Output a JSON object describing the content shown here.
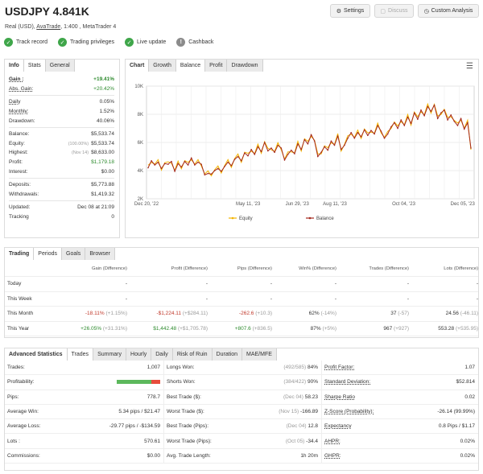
{
  "header": {
    "title": "USDJPY 4.841K",
    "account_type": "Real (USD),",
    "broker": "AvaTrade",
    "leverage_platform": ", 1:400 , MetaTrader 4"
  },
  "top_buttons": {
    "settings": "Settings",
    "discuss": "Discuss",
    "custom_analysis": "Custom Analysis"
  },
  "badges": [
    {
      "label": "Track record",
      "status": "ok"
    },
    {
      "label": "Trading privileges",
      "status": "ok"
    },
    {
      "label": "Live update",
      "status": "ok"
    },
    {
      "label": "Cashback",
      "status": "neutral"
    }
  ],
  "info": {
    "tabs": [
      "Info",
      "Stats",
      "General"
    ],
    "rows": [
      {
        "label": "Gain :",
        "value": "+19.41%"
      },
      {
        "label": "Abs. Gain:",
        "value": "+20.42%"
      },
      {
        "label": "Daily",
        "value": "0.05%"
      },
      {
        "label": "Monthly:",
        "value": "1.52%"
      },
      {
        "label": "Drawdown:",
        "value": "40.06%"
      },
      {
        "label": "Balance:",
        "value": "$5,533.74"
      },
      {
        "label": "Equity:",
        "note": "(100.00%)",
        "value": "$5,533.74"
      },
      {
        "label": "Highest:",
        "note": "(Nov 14)",
        "value": "$8,633.00"
      },
      {
        "label": "Profit:",
        "value": "$1,179.18"
      },
      {
        "label": "Interest:",
        "value": "$0.00"
      },
      {
        "label": "Deposits:",
        "value": "$5,773.88"
      },
      {
        "label": "Withdrawals:",
        "value": "$1,419.32"
      },
      {
        "label": "Updated:",
        "value": "Dec 08 at 21:09"
      },
      {
        "label": "Tracking",
        "value": "0"
      }
    ]
  },
  "chart_panel": {
    "tabs": [
      "Chart",
      "Growth",
      "Balance",
      "Profit",
      "Drawdown"
    ]
  },
  "chart_data": {
    "type": "line",
    "x_ticks": [
      "Dec 20, '22",
      "May 11, '23",
      "Jun 29, '23",
      "Aug 11, '23",
      "Oct 04, '23",
      "Dec 05, '23"
    ],
    "y_ticks": [
      "10K",
      "8K",
      "6K",
      "4K",
      "2K"
    ],
    "ylim": [
      2000,
      10000
    ],
    "legend": [
      "Equity",
      "Balance"
    ],
    "legend_position": "bottom",
    "colors": {
      "equity": "#f3b400",
      "balance": "#a52a1e"
    },
    "series": [
      {
        "name": "Balance",
        "values": [
          4200,
          4700,
          4400,
          4600,
          4150,
          4500,
          4450,
          4650,
          3950,
          4500,
          4250,
          4650,
          4400,
          4900,
          4400,
          4600,
          4450,
          3700,
          3800,
          3750,
          4000,
          4150,
          3950,
          4300,
          4600,
          4350,
          4800,
          5000,
          4700,
          5250,
          5050,
          5500,
          5150,
          5700,
          5350,
          6000,
          5400,
          5600,
          5300,
          5800,
          5600,
          4750,
          5150,
          5450,
          5200,
          5900,
          5500,
          6200,
          5900,
          6550,
          6100,
          5000,
          5300,
          5700,
          5450,
          6100,
          5800,
          6450,
          5500,
          5800,
          6300,
          6700,
          6300,
          6700,
          6400,
          6900,
          6500,
          6850,
          6600,
          7200,
          6800,
          6300,
          6600,
          7100,
          7400,
          7000,
          7600,
          7200,
          7800,
          7350,
          8100,
          7650,
          8300,
          7900,
          8550,
          8200,
          8650,
          7700,
          8100,
          8300,
          7600,
          7950,
          7500,
          7200,
          7700,
          6950,
          7400,
          5600
        ]
      }
    ]
  },
  "trading": {
    "tabs": [
      "Trading",
      "Periods",
      "Goals",
      "Browser"
    ],
    "headers": [
      "Gain (Difference)",
      "Profit (Difference)",
      "Pips (Difference)",
      "Win% (Difference)",
      "Trades (Difference)",
      "Lots (Difference)"
    ],
    "rows": [
      {
        "label": "Today",
        "gain": "-",
        "gain_d": "",
        "profit": "-",
        "profit_d": "",
        "pips": "-",
        "pips_d": "",
        "win": "-",
        "win_d": "",
        "trades": "-",
        "trades_d": "",
        "lots": "-",
        "lots_d": ""
      },
      {
        "label": "This Week",
        "gain": "-",
        "gain_d": "",
        "profit": "-",
        "profit_d": "",
        "pips": "-",
        "pips_d": "",
        "win": "-",
        "win_d": "",
        "trades": "-",
        "trades_d": "",
        "lots": "-",
        "lots_d": ""
      },
      {
        "label": "This Month",
        "gain": "-18.11%",
        "gain_d": "(+1.15%)",
        "profit": "-$1,224.11",
        "profit_d": "(+$284.11)",
        "pips": "-262.6",
        "pips_d": "(+10.3)",
        "win": "62%",
        "win_d": "(-14%)",
        "trades": "37",
        "trades_d": "(-57)",
        "lots": "24.56",
        "lots_d": "(-46.11)"
      },
      {
        "label": "This Year",
        "gain": "+26.05%",
        "gain_d": "(+31.31%)",
        "profit": "$1,442.48",
        "profit_d": "(+$1,705.78)",
        "pips": "+807.6",
        "pips_d": "(+836.5)",
        "win": "87%",
        "win_d": "(+5%)",
        "trades": "967",
        "trades_d": "(+927)",
        "lots": "553.28",
        "lots_d": "(+535.95)"
      }
    ]
  },
  "advanced": {
    "tabs": [
      "Advanced Statistics",
      "Trades",
      "Summary",
      "Hourly",
      "Daily",
      "Risk of Ruin",
      "Duration",
      "MAE/MFE"
    ],
    "profitability_win_ratio": 0.8,
    "rows": [
      {
        "l1": "Trades:",
        "v1": "1,007",
        "l2": "Longs Won:",
        "n2": "(492/585)",
        "v2": "84%",
        "l3": "Profit Factor:",
        "v3": "1.07"
      },
      {
        "l1": "Profitability:",
        "v1": "",
        "l2": "Shorts Won:",
        "n2": "(384/422)",
        "v2": "90%",
        "l3": "Standard Deviation:",
        "v3": "$52.814"
      },
      {
        "l1": "Pips:",
        "v1": "778.7",
        "l2": "Best Trade ($):",
        "n2": "(Dec 04)",
        "v2": "58.23",
        "l3": "Sharpe Ratio",
        "v3": "0.02"
      },
      {
        "l1": "Average Win:",
        "v1": "5.34 pips / $21.47",
        "l2": "Worst Trade ($):",
        "n2": "(Nov 15)",
        "v2": "-166.89",
        "l3": "Z-Score (Probability):",
        "v3": "-26.14 (99.99%)"
      },
      {
        "l1": "Average Loss:",
        "v1": "-29.77 pips / -$134.59",
        "l2": "Best Trade (Pips):",
        "n2": "(Dec 04)",
        "v2": "12.8",
        "l3": "Expectancy",
        "v3": "0.8 Pips / $1.17"
      },
      {
        "l1": "Lots :",
        "v1": "570.61",
        "l2": "Worst Trade (Pips):",
        "n2": "(Oct 05)",
        "v2": "-34.4",
        "l3": "AHPR:",
        "v3": "0.02%"
      },
      {
        "l1": "Commissions:",
        "v1": "$0.00",
        "l2": "Avg. Trade Length:",
        "n2": "",
        "v2": "1h 20m",
        "l3": "GHPR:",
        "v3": "0.02%"
      }
    ]
  }
}
